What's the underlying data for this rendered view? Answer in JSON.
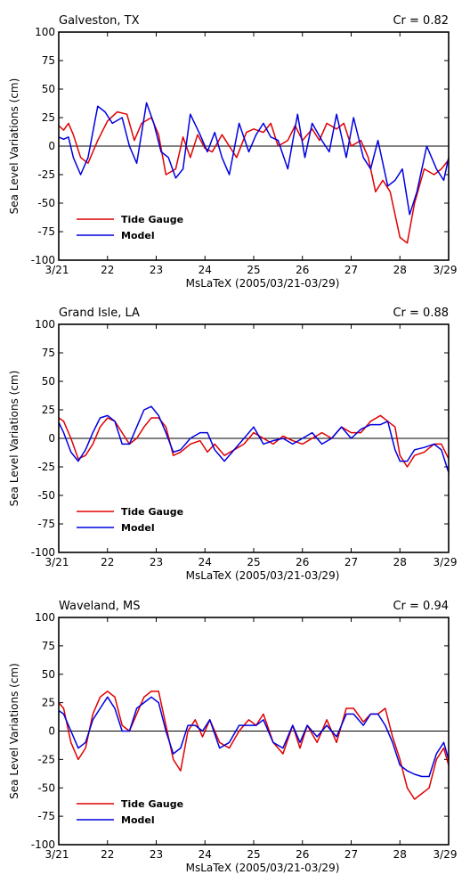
{
  "colors": {
    "tide_gauge": "#e00000",
    "model": "#0000e0"
  },
  "chart_data": [
    {
      "type": "line",
      "title": "Galveston, TX",
      "correlation_label": "Cr = 0.82",
      "xlabel": "MsLaTeX  (2005/03/21-03/29)",
      "ylabel": "Sea Level Variations (cm)",
      "xlim": [
        21,
        29
      ],
      "ylim": [
        -100,
        100
      ],
      "x_tick_labels": [
        "3/21",
        "22",
        "23",
        "24",
        "25",
        "26",
        "27",
        "28",
        "3/29"
      ],
      "y_tick_labels": [
        "100",
        "75",
        "50",
        "25",
        "0",
        "-25",
        "-50",
        "-75",
        "-100"
      ],
      "legend_position": "lower-left",
      "series": [
        {
          "name": "Tide Gauge",
          "color": "tide_gauge",
          "x": [
            21.0,
            21.1,
            21.2,
            21.3,
            21.45,
            21.6,
            21.8,
            22.0,
            22.2,
            22.4,
            22.55,
            22.7,
            22.9,
            23.05,
            23.2,
            23.4,
            23.55,
            23.7,
            23.85,
            24.0,
            24.15,
            24.35,
            24.5,
            24.65,
            24.85,
            25.0,
            25.2,
            25.35,
            25.5,
            25.7,
            25.85,
            26.0,
            26.2,
            26.35,
            26.5,
            26.7,
            26.85,
            27.0,
            27.2,
            27.35,
            27.5,
            27.65,
            27.8,
            28.0,
            28.15,
            28.3,
            28.5,
            28.7,
            28.85,
            29.0
          ],
          "y": [
            18,
            14,
            20,
            10,
            -10,
            -15,
            5,
            22,
            30,
            28,
            5,
            20,
            25,
            10,
            -25,
            -20,
            8,
            -10,
            10,
            -2,
            -5,
            10,
            0,
            -10,
            12,
            15,
            12,
            20,
            0,
            5,
            18,
            5,
            15,
            5,
            20,
            15,
            20,
            0,
            5,
            -10,
            -40,
            -30,
            -40,
            -80,
            -85,
            -50,
            -20,
            -25,
            -20,
            -12
          ]
        },
        {
          "name": "Model",
          "color": "model",
          "x": [
            21.0,
            21.1,
            21.2,
            21.3,
            21.45,
            21.6,
            21.8,
            21.95,
            22.1,
            22.3,
            22.45,
            22.6,
            22.8,
            22.95,
            23.1,
            23.25,
            23.4,
            23.55,
            23.7,
            23.9,
            24.05,
            24.2,
            24.35,
            24.5,
            24.7,
            24.9,
            25.05,
            25.2,
            25.35,
            25.5,
            25.7,
            25.9,
            26.05,
            26.2,
            26.4,
            26.55,
            26.7,
            26.9,
            27.05,
            27.25,
            27.4,
            27.55,
            27.75,
            27.9,
            28.05,
            28.2,
            28.35,
            28.55,
            28.75,
            28.9,
            29.0
          ],
          "y": [
            8,
            6,
            8,
            -10,
            -25,
            -10,
            35,
            30,
            20,
            25,
            0,
            -15,
            38,
            20,
            -5,
            -10,
            -28,
            -20,
            28,
            10,
            -5,
            12,
            -10,
            -25,
            20,
            -5,
            10,
            20,
            8,
            5,
            -20,
            28,
            -10,
            20,
            5,
            -5,
            28,
            -10,
            25,
            -10,
            -20,
            5,
            -35,
            -30,
            -20,
            -60,
            -40,
            0,
            -20,
            -30,
            -10
          ]
        }
      ]
    },
    {
      "type": "line",
      "title": "Grand Isle, LA",
      "correlation_label": "Cr = 0.88",
      "xlabel": "MsLaTeX  (2005/03/21-03/29)",
      "ylabel": "Sea Level Variations (cm)",
      "xlim": [
        21,
        29
      ],
      "ylim": [
        -100,
        100
      ],
      "x_tick_labels": [
        "3/21",
        "22",
        "23",
        "24",
        "25",
        "26",
        "27",
        "28",
        "3/29"
      ],
      "y_tick_labels": [
        "100",
        "75",
        "50",
        "25",
        "0",
        "-25",
        "-50",
        "-75",
        "-100"
      ],
      "legend_position": "lower-left",
      "series": [
        {
          "name": "Tide Gauge",
          "color": "tide_gauge",
          "x": [
            21.0,
            21.1,
            21.25,
            21.4,
            21.55,
            21.7,
            21.85,
            22.0,
            22.15,
            22.3,
            22.45,
            22.6,
            22.75,
            22.9,
            23.05,
            23.2,
            23.35,
            23.5,
            23.7,
            23.9,
            24.05,
            24.2,
            24.4,
            24.6,
            24.8,
            25.0,
            25.2,
            25.4,
            25.6,
            25.8,
            26.0,
            26.2,
            26.4,
            26.6,
            26.8,
            27.0,
            27.2,
            27.4,
            27.6,
            27.75,
            27.9,
            28.0,
            28.15,
            28.3,
            28.5,
            28.7,
            28.85,
            29.0
          ],
          "y": [
            18,
            15,
            0,
            -18,
            -15,
            -5,
            10,
            18,
            15,
            5,
            -5,
            0,
            10,
            18,
            18,
            10,
            -15,
            -12,
            -5,
            -2,
            -12,
            -5,
            -15,
            -10,
            -5,
            5,
            0,
            -5,
            2,
            -2,
            -5,
            0,
            5,
            0,
            10,
            5,
            5,
            15,
            20,
            15,
            10,
            -15,
            -25,
            -15,
            -12,
            -5,
            -5,
            -18
          ]
        },
        {
          "name": "Model",
          "color": "model",
          "x": [
            21.0,
            21.1,
            21.25,
            21.4,
            21.55,
            21.7,
            21.85,
            22.0,
            22.15,
            22.3,
            22.45,
            22.6,
            22.75,
            22.9,
            23.05,
            23.2,
            23.35,
            23.5,
            23.7,
            23.9,
            24.05,
            24.2,
            24.4,
            24.6,
            24.8,
            25.0,
            25.2,
            25.4,
            25.6,
            25.8,
            26.0,
            26.2,
            26.4,
            26.6,
            26.8,
            27.0,
            27.2,
            27.4,
            27.6,
            27.75,
            27.9,
            28.0,
            28.15,
            28.3,
            28.5,
            28.7,
            28.85,
            29.0
          ],
          "y": [
            14,
            5,
            -12,
            -20,
            -10,
            5,
            18,
            20,
            15,
            -5,
            -5,
            10,
            25,
            28,
            20,
            5,
            -12,
            -10,
            0,
            5,
            5,
            -10,
            -20,
            -10,
            0,
            10,
            -5,
            -2,
            0,
            -5,
            0,
            5,
            -5,
            0,
            10,
            0,
            8,
            12,
            12,
            15,
            -10,
            -20,
            -20,
            -10,
            -8,
            -5,
            -10,
            -30
          ]
        }
      ]
    },
    {
      "type": "line",
      "title": "Waveland, MS",
      "correlation_label": "Cr = 0.94",
      "xlabel": "MsLaTeX  (2005/03/21-03/29)",
      "ylabel": "Sea Level Variations (cm)",
      "xlim": [
        21,
        29
      ],
      "ylim": [
        -100,
        100
      ],
      "x_tick_labels": [
        "3/21",
        "22",
        "23",
        "24",
        "25",
        "26",
        "27",
        "28",
        "3/29"
      ],
      "y_tick_labels": [
        "100",
        "75",
        "50",
        "25",
        "0",
        "-25",
        "-50",
        "-75",
        "-100"
      ],
      "legend_position": "lower-left",
      "series": [
        {
          "name": "Tide Gauge",
          "color": "tide_gauge",
          "x": [
            21.0,
            21.1,
            21.25,
            21.4,
            21.55,
            21.7,
            21.85,
            22.0,
            22.15,
            22.3,
            22.45,
            22.6,
            22.75,
            22.9,
            23.05,
            23.2,
            23.35,
            23.5,
            23.65,
            23.8,
            23.95,
            24.1,
            24.3,
            24.5,
            24.7,
            24.9,
            25.05,
            25.2,
            25.4,
            25.6,
            25.8,
            25.95,
            26.1,
            26.3,
            26.5,
            26.7,
            26.9,
            27.05,
            27.25,
            27.4,
            27.55,
            27.7,
            27.85,
            28.0,
            28.15,
            28.3,
            28.45,
            28.6,
            28.75,
            28.9,
            29.0
          ],
          "y": [
            25,
            20,
            -10,
            -25,
            -15,
            15,
            30,
            35,
            30,
            5,
            0,
            15,
            30,
            35,
            35,
            5,
            -25,
            -35,
            0,
            10,
            -5,
            10,
            -10,
            -15,
            0,
            10,
            5,
            15,
            -10,
            -20,
            5,
            -15,
            5,
            -10,
            10,
            -10,
            20,
            20,
            8,
            15,
            15,
            20,
            -5,
            -25,
            -50,
            -60,
            -55,
            -50,
            -25,
            -15,
            -30
          ]
        },
        {
          "name": "Model",
          "color": "model",
          "x": [
            21.0,
            21.1,
            21.25,
            21.4,
            21.55,
            21.7,
            21.85,
            22.0,
            22.15,
            22.3,
            22.45,
            22.6,
            22.75,
            22.9,
            23.05,
            23.2,
            23.35,
            23.5,
            23.65,
            23.8,
            23.95,
            24.1,
            24.3,
            24.5,
            24.7,
            24.9,
            25.05,
            25.2,
            25.4,
            25.6,
            25.8,
            25.95,
            26.1,
            26.3,
            26.5,
            26.7,
            26.9,
            27.05,
            27.25,
            27.4,
            27.55,
            27.7,
            27.85,
            28.0,
            28.15,
            28.3,
            28.45,
            28.6,
            28.75,
            28.9,
            29.0
          ],
          "y": [
            18,
            15,
            0,
            -15,
            -10,
            10,
            20,
            30,
            20,
            0,
            0,
            20,
            25,
            30,
            25,
            0,
            -20,
            -15,
            5,
            5,
            0,
            10,
            -15,
            -10,
            5,
            5,
            5,
            10,
            -10,
            -15,
            5,
            -10,
            5,
            -5,
            5,
            -5,
            15,
            15,
            5,
            15,
            15,
            5,
            -10,
            -30,
            -35,
            -38,
            -40,
            -40,
            -20,
            -10,
            -25
          ]
        }
      ]
    }
  ]
}
